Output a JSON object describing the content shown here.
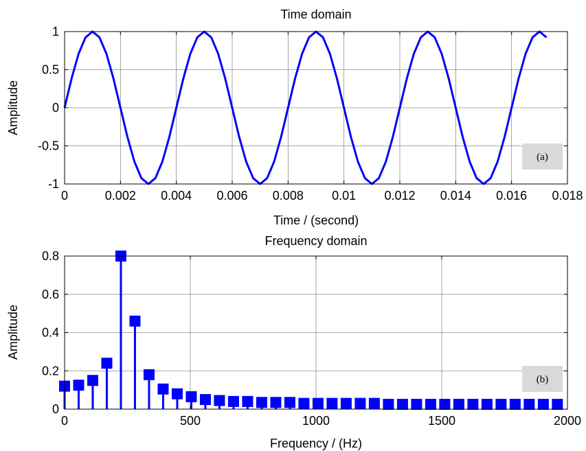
{
  "colors": {
    "series": "#0000ff",
    "grid": "#8c8c8c",
    "annotation_bg": "#d9d9d9"
  },
  "chart_data": [
    {
      "type": "line",
      "title": "Time domain",
      "xlabel": "Time / (second)",
      "ylabel": "Amplitude",
      "annotation": "(a)",
      "xlim": [
        0,
        0.018
      ],
      "ylim": [
        -1,
        1
      ],
      "xticks": [
        0,
        0.002,
        0.004,
        0.006,
        0.008,
        0.01,
        0.012,
        0.014,
        0.016,
        0.018
      ],
      "xtick_labels": [
        "0",
        "0.002",
        "0.004",
        "0.006",
        "0.008",
        "0.01",
        "0.012",
        "0.014",
        "0.016",
        "0.018"
      ],
      "yticks": [
        -1,
        -0.5,
        0,
        0.5,
        1
      ],
      "ytick_labels": [
        "-1",
        "-0.5",
        "0",
        "0.5",
        "1"
      ],
      "grid": true,
      "series": [
        {
          "x": [
            0,
            0.00025,
            0.0005,
            0.00075,
            0.001,
            0.00125,
            0.0015,
            0.00175,
            0.002,
            0.00225,
            0.0025,
            0.00275,
            0.003,
            0.00325,
            0.0035,
            0.00375,
            0.004,
            0.00425,
            0.0045,
            0.00475,
            0.005,
            0.00525,
            0.0055,
            0.00575,
            0.006,
            0.00625,
            0.0065,
            0.00675,
            0.007,
            0.00725,
            0.0075,
            0.00775,
            0.008,
            0.00825,
            0.0085,
            0.00875,
            0.009,
            0.00925,
            0.0095,
            0.00975,
            0.01,
            0.01025,
            0.0105,
            0.01075,
            0.011,
            0.01125,
            0.0115,
            0.01175,
            0.012,
            0.01225,
            0.0125,
            0.01275,
            0.013,
            0.01325,
            0.0135,
            0.01375,
            0.014,
            0.01425,
            0.0145,
            0.01475,
            0.015,
            0.01525,
            0.0155,
            0.01575,
            0.016,
            0.01625,
            0.0165,
            0.01675,
            0.017,
            0.01725
          ],
          "y": [
            0,
            0.383,
            0.707,
            0.924,
            1,
            0.924,
            0.707,
            0.383,
            0,
            -0.383,
            -0.707,
            -0.924,
            -1,
            -0.924,
            -0.707,
            -0.383,
            0,
            0.383,
            0.707,
            0.924,
            1,
            0.924,
            0.707,
            0.383,
            0,
            -0.383,
            -0.707,
            -0.924,
            -1,
            -0.924,
            -0.707,
            -0.383,
            0,
            0.383,
            0.707,
            0.924,
            1,
            0.924,
            0.707,
            0.383,
            0,
            -0.383,
            -0.707,
            -0.924,
            -1,
            -0.924,
            -0.707,
            -0.383,
            0,
            0.383,
            0.707,
            0.924,
            1,
            0.924,
            0.707,
            0.383,
            0,
            -0.383,
            -0.707,
            -0.924,
            -1,
            -0.924,
            -0.707,
            -0.383,
            0,
            0.383,
            0.707,
            0.924,
            1,
            0.924
          ]
        }
      ]
    },
    {
      "type": "bar",
      "title": "Frequency domain",
      "xlabel": "Frequency / (Hz)",
      "ylabel": "Amplitude",
      "annotation": "(b)",
      "xlim": [
        0,
        2000
      ],
      "ylim": [
        0,
        0.8
      ],
      "xticks": [
        0,
        500,
        1000,
        1500,
        2000
      ],
      "xtick_labels": [
        "0",
        "500",
        "1000",
        "1500",
        "2000"
      ],
      "yticks": [
        0,
        0.2,
        0.4,
        0.6,
        0.8
      ],
      "ytick_labels": [
        "0",
        "0.2",
        "0.4",
        "0.6",
        "0.8"
      ],
      "grid": true,
      "series": [
        {
          "x": [
            0,
            56,
            112,
            168,
            224,
            280,
            336,
            392,
            448,
            504,
            560,
            616,
            672,
            728,
            784,
            840,
            896,
            952,
            1008,
            1064,
            1120,
            1176,
            1232,
            1288,
            1344,
            1400,
            1456,
            1512,
            1568,
            1624,
            1680,
            1736,
            1792,
            1848,
            1904,
            1960
          ],
          "y": [
            0.12,
            0.125,
            0.15,
            0.24,
            0.8,
            0.46,
            0.18,
            0.105,
            0.08,
            0.065,
            0.05,
            0.045,
            0.04,
            0.04,
            0.035,
            0.035,
            0.035,
            0.03,
            0.03,
            0.03,
            0.03,
            0.03,
            0.03,
            0.025,
            0.025,
            0.025,
            0.025,
            0.025,
            0.025,
            0.025,
            0.025,
            0.025,
            0.025,
            0.025,
            0.025,
            0.025
          ]
        }
      ]
    }
  ]
}
